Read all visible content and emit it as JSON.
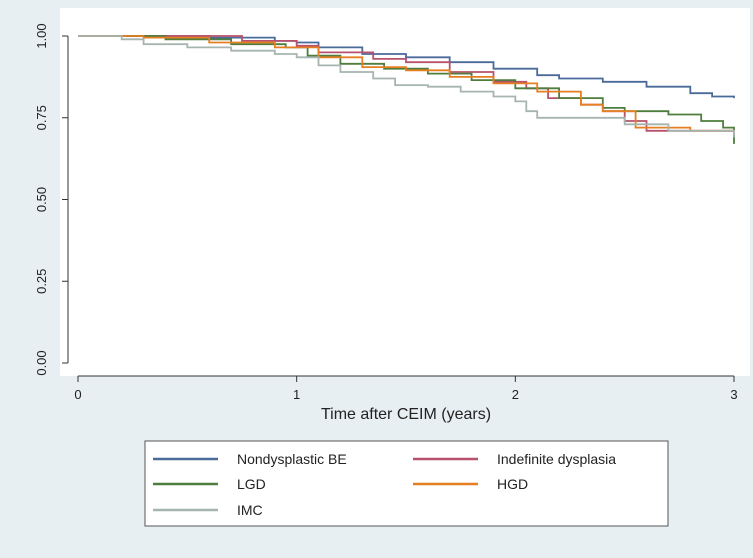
{
  "chart_data": {
    "type": "line",
    "title": "",
    "xlabel": "Time after CEIM (years)",
    "ylabel": "",
    "xlim": [
      0,
      3
    ],
    "ylim": [
      0,
      1
    ],
    "x_ticks": [
      0,
      1,
      2,
      3
    ],
    "x_tick_labels": [
      "0",
      "1",
      "2",
      "3"
    ],
    "y_ticks": [
      0,
      0.25,
      0.5,
      0.75,
      1
    ],
    "y_tick_labels": [
      "0.00",
      "0.25",
      "0.50",
      "0.75",
      "1.00"
    ],
    "grid": false,
    "legend_position": "bottom",
    "step": true,
    "series": [
      {
        "name": "Nondysplastic BE",
        "color": "#4a6a9a",
        "points": [
          [
            0,
            1.0
          ],
          [
            0.3,
            1.0
          ],
          [
            0.6,
            0.995
          ],
          [
            0.9,
            0.985
          ],
          [
            1.0,
            0.98
          ],
          [
            1.1,
            0.965
          ],
          [
            1.3,
            0.945
          ],
          [
            1.5,
            0.935
          ],
          [
            1.7,
            0.92
          ],
          [
            1.9,
            0.9
          ],
          [
            2.1,
            0.88
          ],
          [
            2.2,
            0.87
          ],
          [
            2.4,
            0.86
          ],
          [
            2.6,
            0.845
          ],
          [
            2.8,
            0.825
          ],
          [
            2.9,
            0.815
          ],
          [
            3.0,
            0.81
          ]
        ]
      },
      {
        "name": "Indefinite dysplasia",
        "color": "#b8516b",
        "points": [
          [
            0,
            1.0
          ],
          [
            0.5,
            1.0
          ],
          [
            0.75,
            0.985
          ],
          [
            1.0,
            0.97
          ],
          [
            1.1,
            0.95
          ],
          [
            1.35,
            0.93
          ],
          [
            1.5,
            0.92
          ],
          [
            1.7,
            0.89
          ],
          [
            1.9,
            0.86
          ],
          [
            2.05,
            0.84
          ],
          [
            2.15,
            0.81
          ],
          [
            2.3,
            0.79
          ],
          [
            2.4,
            0.77
          ],
          [
            2.5,
            0.74
          ],
          [
            2.6,
            0.71
          ],
          [
            3.0,
            0.71
          ]
        ]
      },
      {
        "name": "LGD",
        "color": "#4e7d3e",
        "points": [
          [
            0,
            1.0
          ],
          [
            0.4,
            0.99
          ],
          [
            0.7,
            0.975
          ],
          [
            0.95,
            0.965
          ],
          [
            1.05,
            0.94
          ],
          [
            1.2,
            0.915
          ],
          [
            1.4,
            0.9
          ],
          [
            1.6,
            0.885
          ],
          [
            1.8,
            0.865
          ],
          [
            2.0,
            0.84
          ],
          [
            2.2,
            0.81
          ],
          [
            2.4,
            0.78
          ],
          [
            2.5,
            0.77
          ],
          [
            2.7,
            0.76
          ],
          [
            2.85,
            0.74
          ],
          [
            2.95,
            0.72
          ],
          [
            3.0,
            0.67
          ]
        ]
      },
      {
        "name": "HGD",
        "color": "#e67f22",
        "points": [
          [
            0,
            1.0
          ],
          [
            0.3,
            0.995
          ],
          [
            0.6,
            0.98
          ],
          [
            0.9,
            0.965
          ],
          [
            1.1,
            0.935
          ],
          [
            1.3,
            0.905
          ],
          [
            1.5,
            0.895
          ],
          [
            1.7,
            0.875
          ],
          [
            1.9,
            0.855
          ],
          [
            2.1,
            0.83
          ],
          [
            2.3,
            0.79
          ],
          [
            2.4,
            0.77
          ],
          [
            2.55,
            0.72
          ],
          [
            2.8,
            0.71
          ],
          [
            3.0,
            0.7
          ]
        ]
      },
      {
        "name": "IMC",
        "color": "#a7b5b1",
        "points": [
          [
            0,
            1.0
          ],
          [
            0.2,
            0.99
          ],
          [
            0.3,
            0.975
          ],
          [
            0.5,
            0.965
          ],
          [
            0.7,
            0.955
          ],
          [
            0.9,
            0.945
          ],
          [
            1.0,
            0.935
          ],
          [
            1.1,
            0.91
          ],
          [
            1.2,
            0.89
          ],
          [
            1.35,
            0.87
          ],
          [
            1.45,
            0.85
          ],
          [
            1.6,
            0.845
          ],
          [
            1.75,
            0.83
          ],
          [
            1.9,
            0.815
          ],
          [
            2.0,
            0.8
          ],
          [
            2.05,
            0.77
          ],
          [
            2.1,
            0.75
          ],
          [
            2.4,
            0.75
          ],
          [
            2.5,
            0.73
          ],
          [
            2.7,
            0.71
          ],
          [
            3.0,
            0.69
          ]
        ]
      }
    ]
  }
}
